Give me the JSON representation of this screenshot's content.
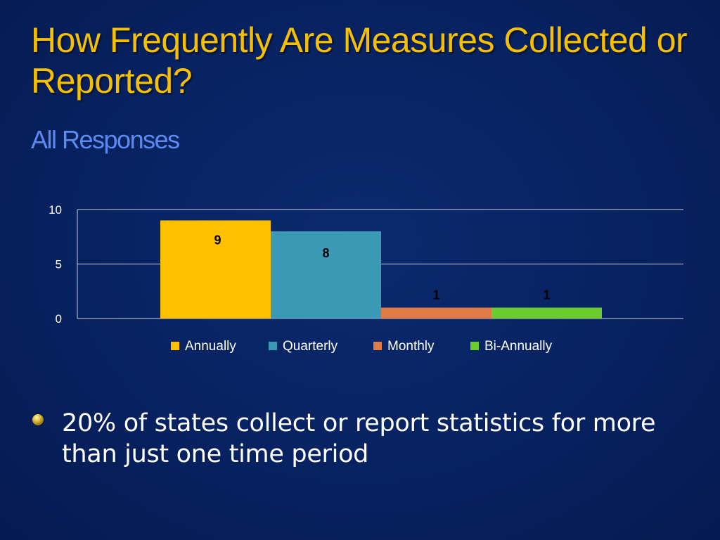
{
  "slide": {
    "title": "How Frequently Are Measures Collected or Reported?",
    "subtitle": "All Responses",
    "bullet": "20% of states collect or report statistics for more than just one time period"
  },
  "chart_data": {
    "type": "bar",
    "title": "",
    "xlabel": "",
    "ylabel": "",
    "ylim": [
      0,
      10
    ],
    "yticks": [
      0,
      5,
      10
    ],
    "grid": true,
    "legend_position": "bottom",
    "series": [
      {
        "name": "Annually",
        "value": 9,
        "color": "#ffc000"
      },
      {
        "name": "Quarterly",
        "value": 8,
        "color": "#3a99b4"
      },
      {
        "name": "Monthly",
        "value": 1,
        "color": "#e07b45"
      },
      {
        "name": "Bi-Annually",
        "value": 1,
        "color": "#6ccc2e"
      }
    ]
  }
}
